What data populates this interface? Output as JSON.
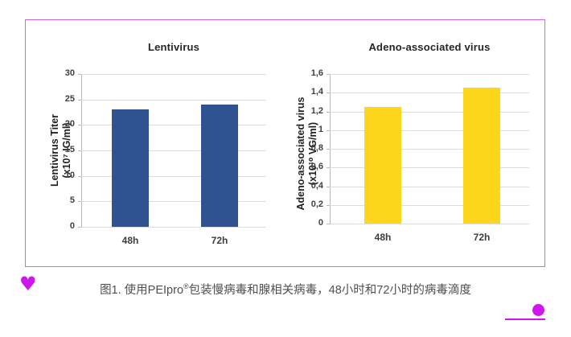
{
  "colors": {
    "figure_border": "#D963F0",
    "accent_magenta": "#CC16EB",
    "lentivirus_bar": "#2F5390",
    "aav_bar": "#FDD61C"
  },
  "caption": {
    "prefix": "图1. 使用PEIpro",
    "sup": "®",
    "suffix": "包装慢病毒和腺相关病毒，48小时和72小时的病毒滴度"
  },
  "icons": {
    "heart": "♥"
  },
  "chart_data": [
    {
      "type": "bar",
      "title": "Lentivirus",
      "ylabel_line1": "Lentivirus Titer",
      "ylabel_line2": "(x10⁷ IG/ml)",
      "categories": [
        "48h",
        "72h"
      ],
      "values": [
        23,
        24
      ],
      "ylim": [
        0,
        30
      ],
      "ytick_step": 5,
      "yticks": [
        "30",
        "25",
        "20",
        "15",
        "10",
        "5",
        "0"
      ],
      "bar_color": "#2F5390",
      "grid": true,
      "legend": "none"
    },
    {
      "type": "bar",
      "title": "Adeno-associated virus",
      "ylabel_line1": "Adeno-associated virus",
      "ylabel_line2": "(x10¹⁰ VG/ml)",
      "categories": [
        "48h",
        "72h"
      ],
      "values": [
        1.25,
        1.45
      ],
      "ylim": [
        0,
        1.6
      ],
      "ytick_step": 0.2,
      "yticks": [
        "1,6",
        "1,4",
        "1,2",
        "1",
        "0,8",
        "0,6",
        "0,4",
        "0,2",
        "0"
      ],
      "bar_color": "#FDD61C",
      "grid": true,
      "legend": "none"
    }
  ]
}
